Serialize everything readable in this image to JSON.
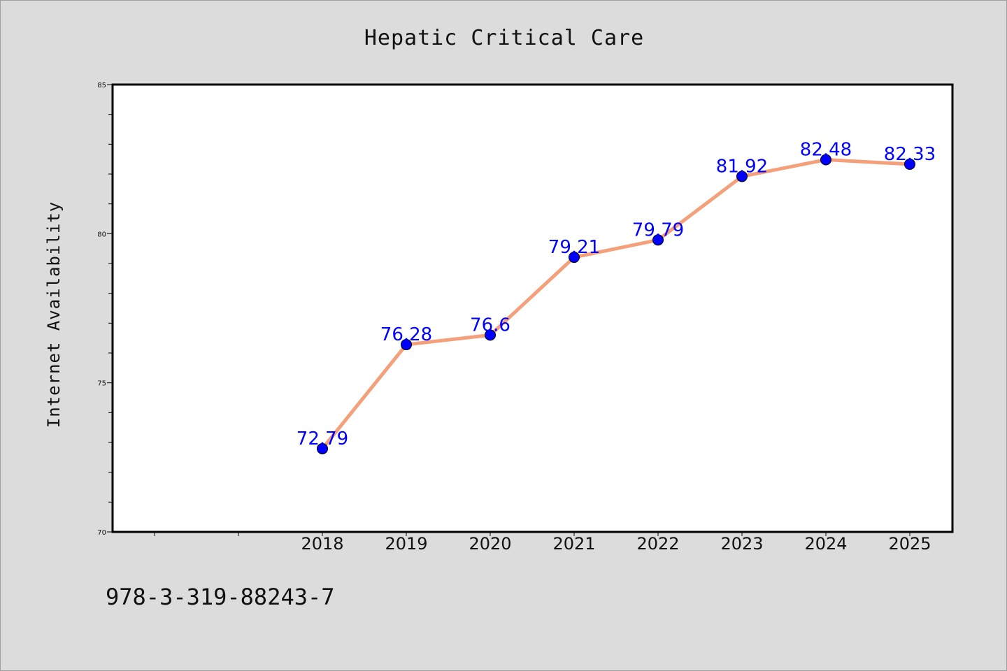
{
  "chart_data": {
    "type": "line",
    "title": "Hepatic Critical Care",
    "xlabel": "",
    "ylabel": "Internet Availability",
    "categories": [
      "2018",
      "2019",
      "2020",
      "2021",
      "2022",
      "2023",
      "2024",
      "2025"
    ],
    "series": [
      {
        "values": [
          72.79,
          76.28,
          76.6,
          79.21,
          79.79,
          81.92,
          82.48,
          82.33
        ],
        "labels": [
          "72.79",
          "76.28",
          "76.6",
          "79.21",
          "79.79",
          "81.92",
          "82.48",
          "82.33"
        ]
      }
    ],
    "ylim": [
      70,
      85
    ],
    "yticks": [
      "70",
      "75",
      "80",
      "85"
    ],
    "grid": false,
    "line_color": "#f4a07a",
    "marker_color": "#0000ff",
    "label_color": "#0000ff"
  },
  "footer": "978-3-319-88243-7"
}
